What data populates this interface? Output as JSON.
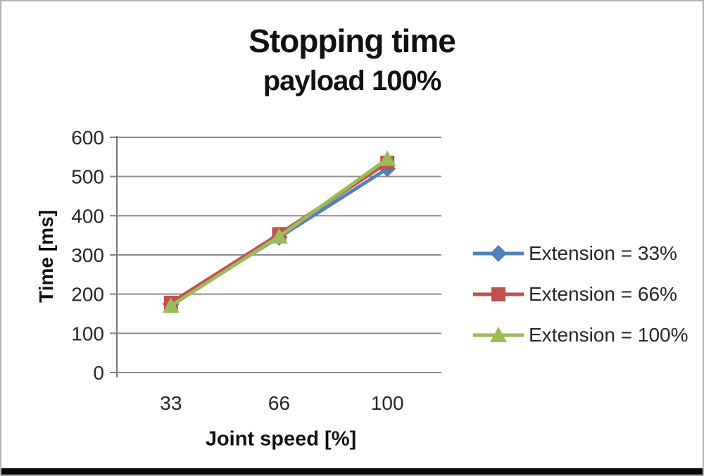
{
  "chart_data": {
    "type": "line",
    "title": "Stopping time",
    "subtitle": "payload 100%",
    "xlabel": "Joint speed [%]",
    "ylabel": "Time [ms]",
    "categories": [
      "33",
      "66",
      "100"
    ],
    "series": [
      {
        "name": "Extension = 33%",
        "marker": "diamond-icon",
        "color": "#4F81BD",
        "values": [
          175,
          345,
          520
        ]
      },
      {
        "name": "Extension = 66%",
        "marker": "square-icon",
        "color": "#C0504D",
        "values": [
          178,
          353,
          535
        ]
      },
      {
        "name": "Extension = 100%",
        "marker": "triangle-icon",
        "color": "#9BBB59",
        "values": [
          170,
          347,
          545
        ]
      }
    ],
    "ylim": [
      0,
      600
    ],
    "yticks": [
      0,
      100,
      200,
      300,
      400,
      500,
      600
    ],
    "grid": true,
    "legend_position": "right"
  },
  "colors": {
    "gridline": "#8c8c8c",
    "axis": "#7f7f7f",
    "tick_label": "#262626",
    "title_text": "#111111",
    "bottom_bar": "#0a0a0a"
  }
}
